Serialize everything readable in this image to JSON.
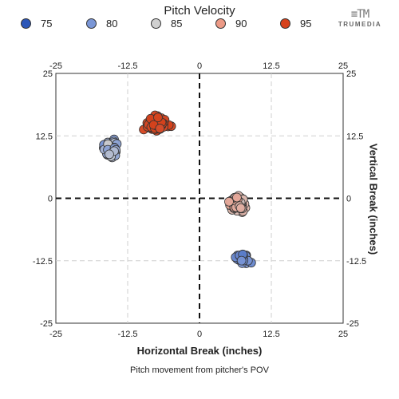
{
  "legend": {
    "title": "Pitch Velocity",
    "items": [
      {
        "label": "75",
        "color": "#2b56b8"
      },
      {
        "label": "80",
        "color": "#7a96d6"
      },
      {
        "label": "85",
        "color": "#d0d0d0"
      },
      {
        "label": "90",
        "color": "#ec9a86"
      },
      {
        "label": "95",
        "color": "#d6421c"
      }
    ]
  },
  "logo": {
    "mark": "≡TM",
    "text": "TRUMEDIA"
  },
  "chart_data": {
    "type": "scatter",
    "xlabel": "Horizontal Break (inches)",
    "ylabel": "Vertical Break (inches)",
    "caption": "Pitch movement from pitcher's POV",
    "xlim": [
      -25,
      25
    ],
    "ylim": [
      -25,
      25
    ],
    "ticks": [
      -25,
      -12.5,
      0,
      12.5,
      25
    ],
    "tick_labels": [
      "-25",
      "-12.5",
      "0",
      "12.5",
      "25"
    ],
    "grid": true,
    "legend_position": "top",
    "color_scale": {
      "min": 75,
      "max": 95,
      "colors": [
        "#2b56b8",
        "#7a96d6",
        "#d0d0d0",
        "#ec9a86",
        "#d6421c"
      ]
    },
    "clusters": [
      {
        "name": "",
        "velocity": 95,
        "center": [
          -7.5,
          15
        ],
        "spread": [
          2.4,
          1.5
        ],
        "count": 140,
        "velocity_spread": 1.0
      },
      {
        "name": "",
        "velocity": 82,
        "center": [
          -15.5,
          10
        ],
        "spread": [
          1.6,
          2.5
        ],
        "count": 45,
        "velocity_spread": 3.2
      },
      {
        "name": "",
        "velocity": 88,
        "center": [
          6.5,
          -1
        ],
        "spread": [
          1.5,
          1.8
        ],
        "count": 70,
        "velocity_spread": 2.0
      },
      {
        "name": "",
        "velocity": 79,
        "center": [
          7.5,
          -12
        ],
        "spread": [
          1.5,
          1.5
        ],
        "count": 25,
        "velocity_spread": 2.0
      }
    ]
  }
}
